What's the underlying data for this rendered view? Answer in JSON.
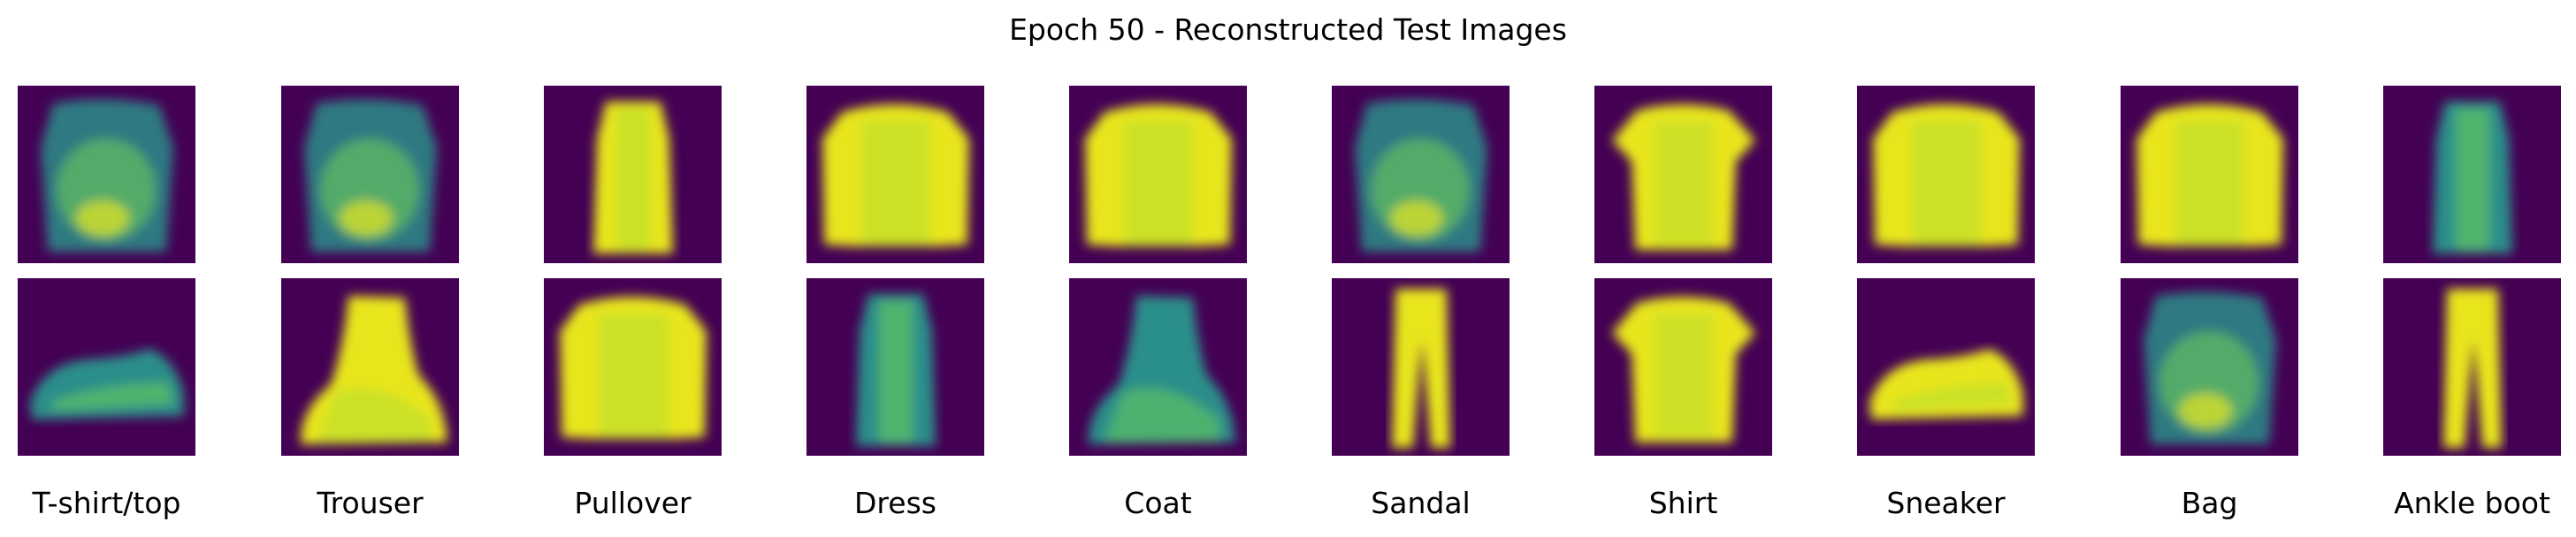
{
  "figure": {
    "title": "Epoch 50 - Reconstructed Test Images"
  },
  "colormap": {
    "name": "viridis",
    "background": "#440154",
    "high": "#e8e51f",
    "mid": "#2a8e8a"
  },
  "class_labels": [
    "T-shirt/top",
    "Trouser",
    "Pullover",
    "Dress",
    "Coat",
    "Sandal",
    "Shirt",
    "Sneaker",
    "Bag",
    "Ankle boot"
  ],
  "grid": {
    "rows": [
      {
        "name": "top-row",
        "tiles": [
          {
            "shape": "shirt-blob",
            "intensity": "mixed"
          },
          {
            "shape": "shirt-blob",
            "intensity": "mixed"
          },
          {
            "shape": "dress",
            "intensity": "high"
          },
          {
            "shape": "long-sleeve",
            "intensity": "high"
          },
          {
            "shape": "long-sleeve",
            "intensity": "high"
          },
          {
            "shape": "shirt-blob",
            "intensity": "mixed"
          },
          {
            "shape": "tshirt",
            "intensity": "high"
          },
          {
            "shape": "long-sleeve",
            "intensity": "high"
          },
          {
            "shape": "long-sleeve",
            "intensity": "high"
          },
          {
            "shape": "dress",
            "intensity": "mixed"
          }
        ]
      },
      {
        "name": "bottom-row",
        "tiles": [
          {
            "shape": "sneaker",
            "intensity": "mixed"
          },
          {
            "shape": "boot",
            "intensity": "high"
          },
          {
            "shape": "long-sleeve",
            "intensity": "high"
          },
          {
            "shape": "dress",
            "intensity": "mixed"
          },
          {
            "shape": "boot",
            "intensity": "mixed"
          },
          {
            "shape": "trouser",
            "intensity": "high"
          },
          {
            "shape": "tshirt",
            "intensity": "high"
          },
          {
            "shape": "sneaker",
            "intensity": "high"
          },
          {
            "shape": "shirt-blob",
            "intensity": "mixed"
          },
          {
            "shape": "trouser",
            "intensity": "high"
          }
        ]
      }
    ]
  }
}
